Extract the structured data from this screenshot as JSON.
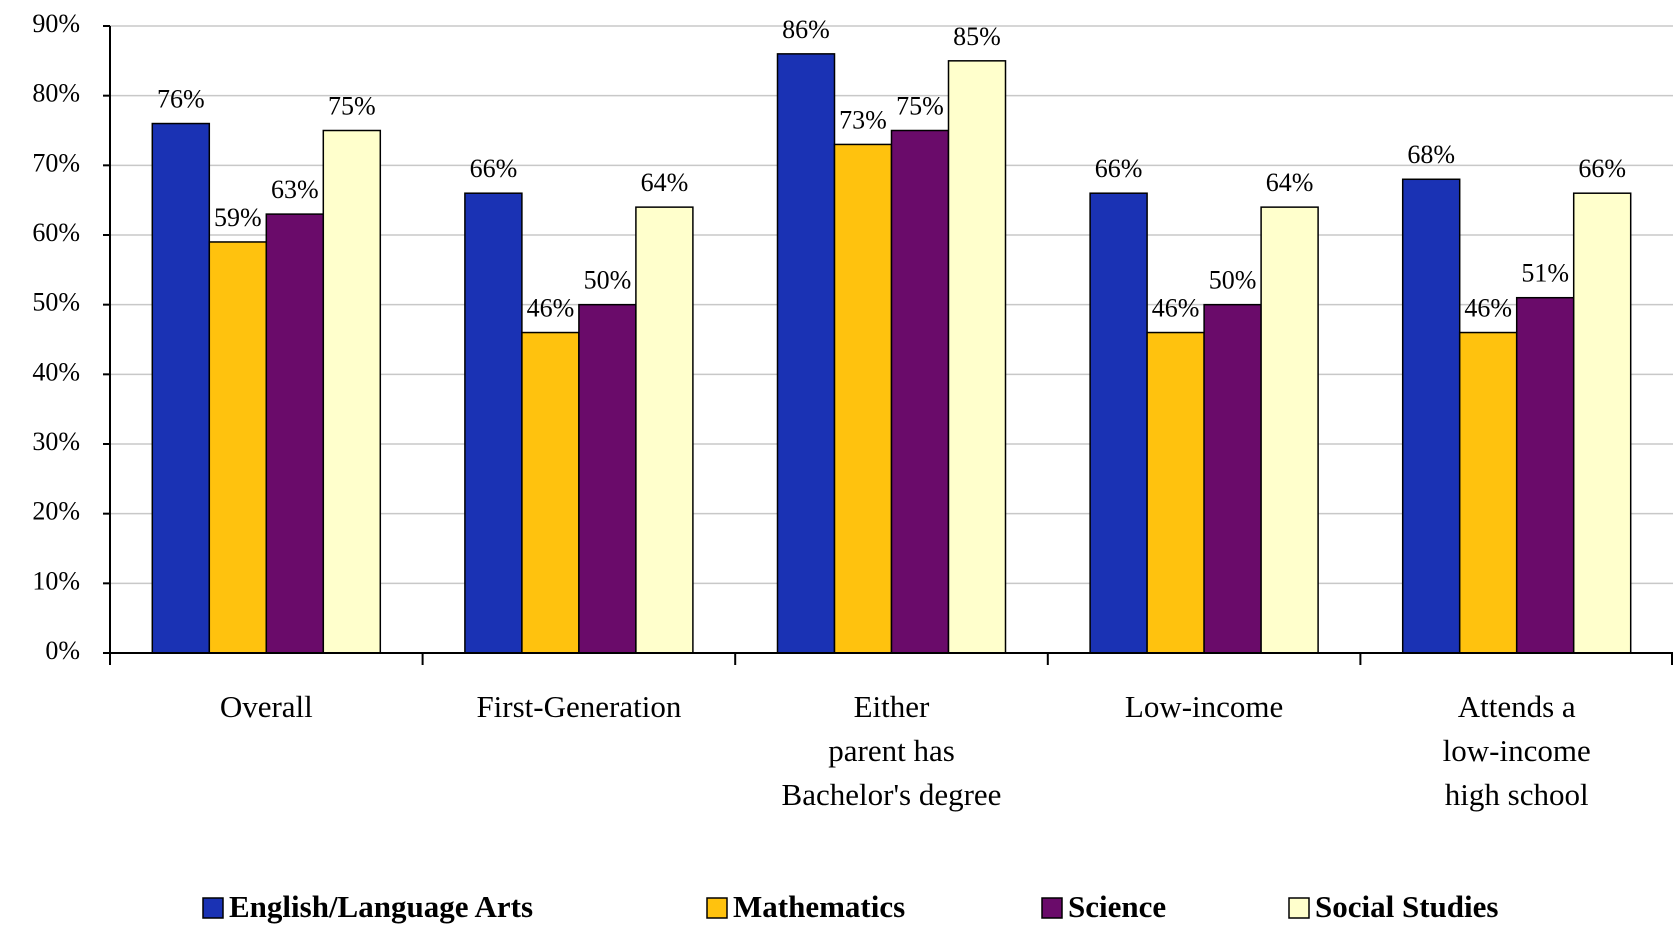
{
  "chart_data": {
    "type": "bar",
    "categories": [
      "Overall",
      "First-Generation",
      "Either\nparent has\nBachelor's degree",
      "Low-income",
      "Attends a\nlow-income\nhigh school"
    ],
    "series": [
      {
        "name": "English/Language Arts",
        "color": "#1a32b4",
        "values": [
          76,
          66,
          86,
          66,
          68
        ],
        "value_labels": [
          "76%",
          "66%",
          "86%",
          "66%",
          "68%"
        ]
      },
      {
        "name": "Mathematics",
        "color": "#ffc20e",
        "values": [
          59,
          46,
          73,
          46,
          46
        ],
        "value_labels": [
          "59%",
          "46%",
          "73%",
          "46%",
          "46%"
        ]
      },
      {
        "name": "Science",
        "color": "#6a0b6a",
        "values": [
          63,
          50,
          75,
          50,
          51
        ],
        "value_labels": [
          "63%",
          "50%",
          "75%",
          "50%",
          "51%"
        ]
      },
      {
        "name": "Social Studies",
        "color": "#ffffcc",
        "values": [
          75,
          64,
          85,
          64,
          66
        ],
        "value_labels": [
          "75%",
          "64%",
          "85%",
          "64%",
          "66%"
        ]
      }
    ],
    "ylim": [
      0,
      90
    ],
    "yticks": [
      {
        "value": 0,
        "label": "0%"
      },
      {
        "value": 10,
        "label": "10%"
      },
      {
        "value": 20,
        "label": "20%"
      },
      {
        "value": 30,
        "label": "30%"
      },
      {
        "value": 40,
        "label": "40%"
      },
      {
        "value": 50,
        "label": "50%"
      },
      {
        "value": 60,
        "label": "60%"
      },
      {
        "value": 70,
        "label": "70%"
      },
      {
        "value": 80,
        "label": "80%"
      },
      {
        "value": 90,
        "label": "90%"
      }
    ],
    "grid": true,
    "legend": "bottom"
  }
}
